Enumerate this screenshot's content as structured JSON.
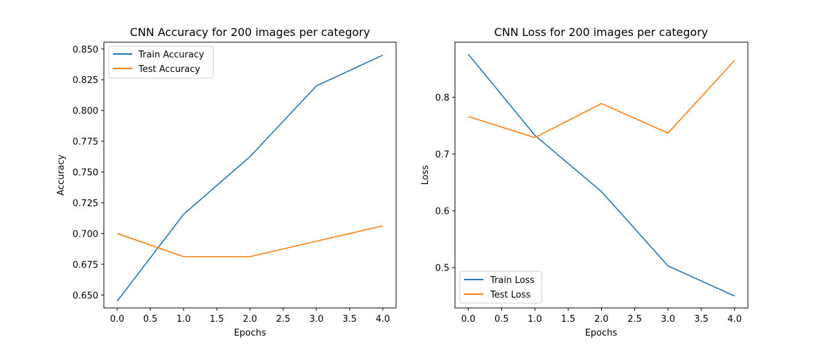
{
  "chart_data": [
    {
      "type": "line",
      "title": "CNN Accuracy for 200 images per category",
      "xlabel": "Epochs",
      "ylabel": "Accuracy",
      "x": [
        0,
        1,
        2,
        3,
        4
      ],
      "xlim": [
        -0.2,
        4.2
      ],
      "ylim": [
        0.6395,
        0.8555
      ],
      "xticks": [
        "0.0",
        "0.5",
        "1.0",
        "1.5",
        "2.0",
        "2.5",
        "3.0",
        "3.5",
        "4.0"
      ],
      "yticks": [
        "0.650",
        "0.675",
        "0.700",
        "0.725",
        "0.750",
        "0.775",
        "0.800",
        "0.825",
        "0.850"
      ],
      "legend_position": "upper-left",
      "grid": false,
      "series": [
        {
          "name": "Train Accuracy",
          "color": "#1f77b4",
          "values": [
            0.645,
            0.7156,
            0.7625,
            0.82,
            0.845
          ]
        },
        {
          "name": "Test Accuracy",
          "color": "#ff7f0e",
          "values": [
            0.7,
            0.6812,
            0.6812,
            0.6938,
            0.7062
          ]
        }
      ]
    },
    {
      "type": "line",
      "title": "CNN Loss for 200 images per category",
      "xlabel": "Epochs",
      "ylabel": "Loss",
      "x": [
        0,
        1,
        2,
        3,
        4
      ],
      "xlim": [
        -0.2,
        4.2
      ],
      "ylim": [
        0.429,
        0.897
      ],
      "xticks": [
        "0.0",
        "0.5",
        "1.0",
        "1.5",
        "2.0",
        "2.5",
        "3.0",
        "3.5",
        "4.0"
      ],
      "yticks": [
        "0.5",
        "0.6",
        "0.7",
        "0.8"
      ],
      "legend_position": "lower-left",
      "grid": false,
      "series": [
        {
          "name": "Train Loss",
          "color": "#1f77b4",
          "values": [
            0.876,
            0.733,
            0.634,
            0.503,
            0.45
          ]
        },
        {
          "name": "Test Loss",
          "color": "#ff7f0e",
          "values": [
            0.766,
            0.729,
            0.789,
            0.737,
            0.865
          ]
        }
      ]
    }
  ]
}
